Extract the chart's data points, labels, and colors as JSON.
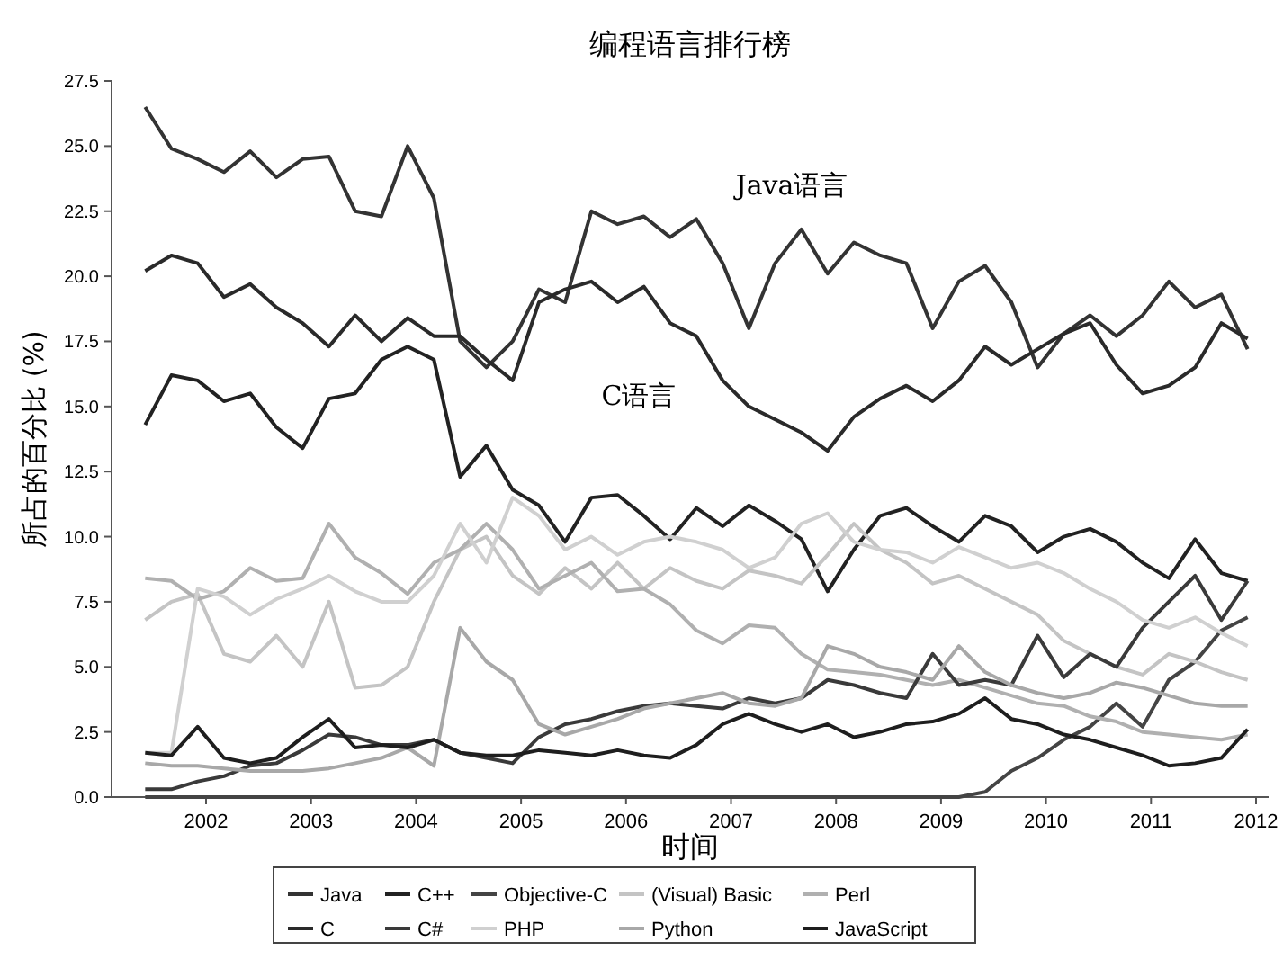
{
  "chart_data": {
    "type": "line",
    "title": "编程语言排行榜",
    "xlabel": "时间",
    "ylabel": "所占的百分比 (%)",
    "x": [
      2001.42,
      2001.67,
      2001.92,
      2002.17,
      2002.42,
      2002.67,
      2002.92,
      2003.17,
      2003.42,
      2003.67,
      2003.92,
      2004.17,
      2004.42,
      2004.67,
      2004.92,
      2005.17,
      2005.42,
      2005.67,
      2005.92,
      2006.17,
      2006.42,
      2006.67,
      2006.92,
      2007.17,
      2007.42,
      2007.67,
      2007.92,
      2008.17,
      2008.42,
      2008.67,
      2008.92,
      2009.17,
      2009.42,
      2009.67,
      2009.92,
      2010.17,
      2010.42,
      2010.67,
      2010.92,
      2011.17,
      2011.42,
      2011.67,
      2011.92
    ],
    "xlim": [
      2001.1,
      2012.12
    ],
    "xticks": [
      2002,
      2003,
      2004,
      2005,
      2006,
      2007,
      2008,
      2009,
      2010,
      2011,
      2012
    ],
    "ylim": [
      0,
      27.5
    ],
    "yticks": [
      {
        "value": 0,
        "label": "0.0"
      },
      {
        "value": 2.5,
        "label": "2.5"
      },
      {
        "value": 5,
        "label": "5.0"
      },
      {
        "value": 7.5,
        "label": "7.5"
      },
      {
        "value": 10,
        "label": "10.0"
      },
      {
        "value": 12.5,
        "label": "12.5"
      },
      {
        "value": 15,
        "label": "15.0"
      },
      {
        "value": 17.5,
        "label": "17.5"
      },
      {
        "value": 20,
        "label": "20.0"
      },
      {
        "value": 22.5,
        "label": "22.5"
      },
      {
        "value": 25,
        "label": "25.0"
      },
      {
        "value": 27.5,
        "label": "27.5"
      }
    ],
    "grid": false,
    "legend": "bottom",
    "series": [
      {
        "name": "Java",
        "color": "#333333",
        "values": [
          26.5,
          24.9,
          24.5,
          24,
          24.8,
          23.8,
          24.5,
          24.6,
          22.5,
          22.3,
          25,
          23,
          17.5,
          16.5,
          17.5,
          19.5,
          19,
          22.5,
          22,
          22.3,
          21.5,
          22.2,
          20.5,
          18,
          20.5,
          21.8,
          20.1,
          21.3,
          20.8,
          20.5,
          18,
          19.8,
          20.4,
          19,
          16.5,
          17.8,
          18.5,
          17.7,
          18.5,
          19.8,
          18.8,
          19.3,
          17.2
        ]
      },
      {
        "name": "C++",
        "color": "#222222",
        "values": [
          14.3,
          16.2,
          16,
          15.2,
          15.5,
          14.2,
          13.4,
          15.3,
          15.5,
          16.8,
          17.3,
          16.8,
          12.3,
          13.5,
          11.8,
          11.2,
          9.8,
          11.5,
          11.6,
          10.8,
          9.9,
          11.1,
          10.4,
          11.2,
          10.6,
          9.9,
          7.9,
          9.5,
          10.8,
          11.1,
          10.4,
          9.8,
          10.8,
          10.4,
          9.4,
          10,
          10.3,
          9.8,
          9.0,
          8.4,
          9.9,
          8.6,
          8.3
        ]
      },
      {
        "name": "Objective-C",
        "color": "#444444",
        "values": [
          0,
          0,
          0,
          0,
          0,
          0,
          0,
          0,
          0,
          0,
          0,
          0,
          0,
          0,
          0,
          0,
          0,
          0,
          0,
          0,
          0,
          0,
          0,
          0,
          0,
          0,
          0,
          0,
          0,
          0,
          0,
          0,
          0.2,
          1.0,
          1.5,
          2.2,
          2.7,
          3.6,
          2.7,
          4.5,
          5.2,
          6.4,
          6.9
        ]
      },
      {
        "name": "(Visual) Basic",
        "color": "#c4c4c4",
        "values": [
          6.8,
          7.5,
          7.8,
          5.5,
          5.2,
          6.2,
          5.0,
          7.5,
          4.2,
          4.3,
          5.0,
          7.5,
          9.5,
          10.0,
          8.5,
          7.8,
          8.8,
          8.0,
          9.0,
          8.0,
          8.8,
          8.3,
          8.0,
          8.7,
          8.5,
          8.2,
          9.3,
          10.5,
          9.5,
          9.0,
          8.2,
          8.5,
          8.0,
          7.5,
          7.0,
          6.0,
          5.5,
          5.0,
          4.7,
          5.5,
          5.2,
          4.8,
          4.5
        ]
      },
      {
        "name": "Perl",
        "color": "#b0b0b0",
        "values": [
          8.4,
          8.3,
          7.6,
          7.9,
          8.8,
          8.3,
          8.4,
          10.5,
          9.2,
          8.6,
          7.8,
          9.0,
          9.5,
          10.5,
          9.5,
          8.0,
          8.5,
          9.0,
          7.9,
          8.0,
          7.4,
          6.4,
          5.9,
          6.6,
          6.5,
          5.5,
          4.9,
          4.8,
          4.7,
          4.5,
          4.3,
          4.5,
          4.2,
          3.9,
          3.6,
          3.5,
          3.1,
          2.9,
          2.5,
          2.4,
          2.3,
          2.2,
          2.4
        ]
      },
      {
        "name": "C",
        "color": "#2a2a2a",
        "values": [
          20.2,
          20.8,
          20.5,
          19.2,
          19.7,
          18.8,
          18.2,
          17.3,
          18.5,
          17.5,
          18.4,
          17.7,
          17.7,
          16.8,
          16,
          19,
          19.5,
          19.8,
          19,
          19.6,
          18.2,
          17.7,
          16,
          15,
          14.5,
          14,
          13.3,
          14.6,
          15.3,
          15.8,
          15.2,
          16,
          17.3,
          16.6,
          17.2,
          17.8,
          18.2,
          16.6,
          15.5,
          15.8,
          16.5,
          18.2,
          17.6
        ]
      },
      {
        "name": "C#",
        "color": "#3a3a3a",
        "values": [
          0.3,
          0.3,
          0.6,
          0.8,
          1.2,
          1.3,
          1.8,
          2.4,
          2.3,
          2.0,
          2.0,
          2.2,
          1.7,
          1.5,
          1.3,
          2.3,
          2.8,
          3.0,
          3.3,
          3.5,
          3.6,
          3.5,
          3.4,
          3.8,
          3.6,
          3.8,
          4.5,
          4.3,
          4.0,
          3.8,
          5.5,
          4.3,
          4.5,
          4.3,
          6.2,
          4.6,
          5.5,
          5.0,
          6.5,
          7.5,
          8.5,
          6.8,
          8.3
        ]
      },
      {
        "name": "PHP",
        "color": "#d0d0d0",
        "values": [
          1.7,
          1.7,
          8.0,
          7.7,
          7.0,
          7.6,
          8.0,
          8.5,
          7.9,
          7.5,
          7.5,
          8.5,
          10.5,
          9.0,
          11.5,
          10.8,
          9.5,
          10.0,
          9.3,
          9.8,
          10.0,
          9.8,
          9.5,
          8.8,
          9.2,
          10.5,
          10.9,
          9.8,
          9.5,
          9.4,
          9.0,
          9.6,
          9.2,
          8.8,
          9.0,
          8.6,
          8.0,
          7.5,
          6.8,
          6.5,
          6.9,
          6.3,
          5.8
        ]
      },
      {
        "name": "Python",
        "color": "#a8a8a8",
        "values": [
          1.3,
          1.2,
          1.2,
          1.1,
          1.0,
          1.0,
          1.0,
          1.1,
          1.3,
          1.5,
          1.9,
          1.2,
          6.5,
          5.2,
          4.5,
          2.8,
          2.4,
          2.7,
          3.0,
          3.4,
          3.6,
          3.8,
          4.0,
          3.6,
          3.5,
          3.8,
          5.8,
          5.5,
          5.0,
          4.8,
          4.5,
          5.8,
          4.8,
          4.3,
          4.0,
          3.8,
          4.0,
          4.4,
          4.2,
          3.9,
          3.6,
          3.5,
          3.5
        ]
      },
      {
        "name": "JavaScript",
        "color": "#1e1e1e",
        "values": [
          1.7,
          1.6,
          2.7,
          1.5,
          1.3,
          1.5,
          2.3,
          3.0,
          1.9,
          2.0,
          1.9,
          2.2,
          1.7,
          1.6,
          1.6,
          1.8,
          1.7,
          1.6,
          1.8,
          1.6,
          1.5,
          2.0,
          2.8,
          3.2,
          2.8,
          2.5,
          2.8,
          2.3,
          2.5,
          2.8,
          2.9,
          3.2,
          3.8,
          3.0,
          2.8,
          2.4,
          2.2,
          1.9,
          1.6,
          1.2,
          1.3,
          1.5,
          2.6
        ]
      }
    ],
    "annotations": [
      "Java语言",
      "C语言"
    ]
  }
}
